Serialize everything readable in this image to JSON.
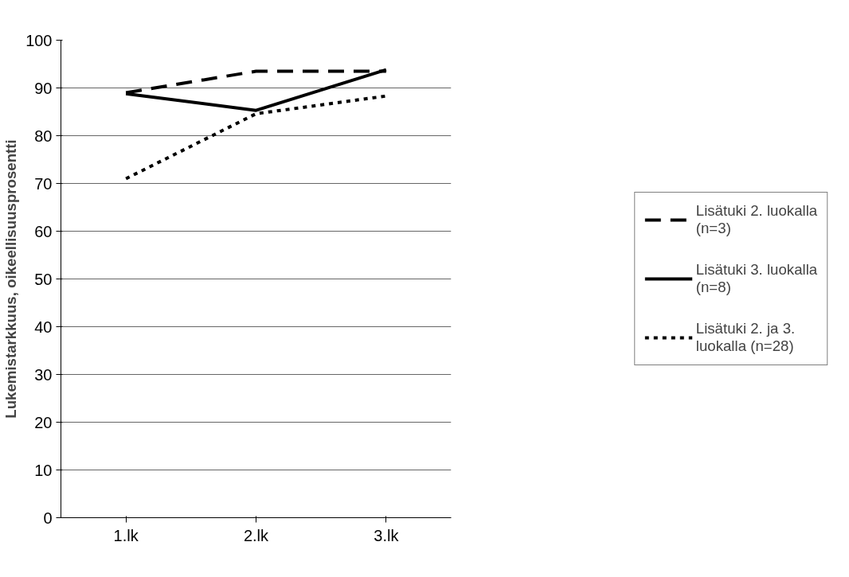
{
  "chart_data": {
    "type": "line",
    "ylabel": "Lukemistarkkuus, oikeellisuusprosentti",
    "categories": [
      "1.lk",
      "2.lk",
      "3.lk"
    ],
    "series": [
      {
        "name": "Lisätuki 2. luokalla (n=3)",
        "color": "#000000",
        "line_style": "dashed",
        "values": [
          89,
          93.5,
          93.5
        ]
      },
      {
        "name": "Lisätuki 3. luokalla (n=8)",
        "color": "#000000",
        "line_style": "solid",
        "values": [
          88.8,
          85.3,
          93.8
        ]
      },
      {
        "name": "Lisätuki 2. ja 3. luokalla (n=28)",
        "color": "#000000",
        "line_style": "dotted",
        "values": [
          71,
          84.6,
          88.3
        ]
      }
    ],
    "ylim": [
      0,
      100
    ],
    "yticks": [
      0,
      10,
      20,
      30,
      40,
      50,
      60,
      70,
      80,
      90,
      100
    ],
    "grid": "y",
    "legend": "right",
    "marker": "none"
  }
}
